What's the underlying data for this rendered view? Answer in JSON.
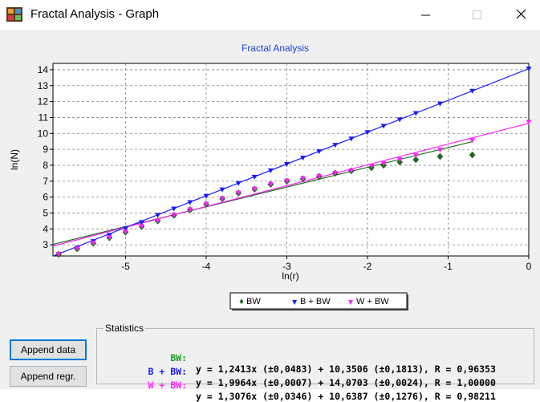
{
  "window": {
    "title": "Fractal Analysis - Graph",
    "min_icon": "minimize-icon",
    "max_icon": "maximize-icon",
    "close_icon": "close-icon"
  },
  "chart_data": {
    "type": "scatter",
    "title": "Fractal Analysis",
    "xlabel": "ln(r)",
    "ylabel": "ln(N)",
    "xlim": [
      -5.9,
      0
    ],
    "ylim": [
      2.3,
      14.4
    ],
    "x_ticks": [
      -5,
      -4,
      -3,
      -2,
      -1,
      0
    ],
    "y_ticks": [
      3,
      4,
      5,
      6,
      7,
      8,
      9,
      10,
      11,
      12,
      13,
      14
    ],
    "grid": true,
    "legend_position": "bottom",
    "series": [
      {
        "name": "BW",
        "color": "#1f6b1f",
        "marker": "diamond",
        "x": [
          -5.83,
          -5.6,
          -5.4,
          -5.2,
          -5.0,
          -4.8,
          -4.6,
          -4.4,
          -4.2,
          -4.0,
          -3.8,
          -3.6,
          -3.4,
          -3.2,
          -3.0,
          -2.8,
          -2.6,
          -2.4,
          -2.2,
          -1.95,
          -1.8,
          -1.6,
          -1.4,
          -1.1,
          -0.7
        ],
        "y": [
          2.4,
          2.75,
          3.1,
          3.45,
          3.8,
          4.15,
          4.5,
          4.85,
          5.2,
          5.55,
          5.9,
          6.25,
          6.5,
          6.8,
          7.0,
          7.15,
          7.3,
          7.5,
          7.65,
          7.85,
          8.0,
          8.2,
          8.35,
          8.55,
          8.65
        ],
        "regression": {
          "slope": 1.2413,
          "intercept": 10.3506,
          "x_range": [
            -5.9,
            -0.7
          ]
        }
      },
      {
        "name": "B + BW",
        "color": "#1a1aff",
        "marker": "triangle-down",
        "x": [
          -5.83,
          -5.6,
          -5.4,
          -5.2,
          -5.0,
          -4.8,
          -4.6,
          -4.4,
          -4.2,
          -4.0,
          -3.8,
          -3.6,
          -3.4,
          -3.2,
          -3.0,
          -2.8,
          -2.6,
          -2.4,
          -2.2,
          -2.0,
          -1.8,
          -1.6,
          -1.4,
          -1.1,
          -0.7,
          0.0
        ],
        "y": [
          2.4,
          2.8,
          3.2,
          3.6,
          4.0,
          4.4,
          4.85,
          5.25,
          5.65,
          6.05,
          6.45,
          6.85,
          7.25,
          7.65,
          8.05,
          8.45,
          8.85,
          9.25,
          9.65,
          10.05,
          10.45,
          10.85,
          11.25,
          11.85,
          12.65,
          14.05
        ],
        "regression": {
          "slope": 1.9964,
          "intercept": 14.0703,
          "x_range": [
            -5.9,
            0
          ]
        }
      },
      {
        "name": "W + BW",
        "color": "#ff22ff",
        "marker": "triangle-down",
        "x": [
          -5.83,
          -5.6,
          -5.4,
          -5.2,
          -5.0,
          -4.8,
          -4.6,
          -4.4,
          -4.2,
          -4.0,
          -3.8,
          -3.6,
          -3.4,
          -3.2,
          -3.0,
          -2.8,
          -2.6,
          -2.4,
          -2.2,
          -1.95,
          -1.8,
          -1.6,
          -1.4,
          -1.1,
          -0.7,
          0.0
        ],
        "y": [
          2.4,
          2.75,
          3.1,
          3.45,
          3.8,
          4.15,
          4.5,
          4.85,
          5.2,
          5.55,
          5.9,
          6.25,
          6.5,
          6.8,
          7.0,
          7.15,
          7.3,
          7.5,
          7.65,
          7.95,
          8.1,
          8.35,
          8.6,
          8.95,
          9.55,
          10.7
        ],
        "regression": {
          "slope": 1.3076,
          "intercept": 10.6387,
          "x_range": [
            -5.9,
            0
          ]
        }
      }
    ]
  },
  "legend": [
    {
      "symbol": "♦",
      "label": "BW",
      "color": "#1f6b1f"
    },
    {
      "symbol": "▼",
      "label": "B + BW",
      "color": "#1a1aff"
    },
    {
      "symbol": "▼",
      "label": "W + BW",
      "color": "#ff22ff"
    }
  ],
  "buttons": {
    "append_data": "Append data",
    "append_regr": "Append regr."
  },
  "statistics": {
    "label": "Statistics",
    "rows": [
      {
        "name": "BW:",
        "color": "#19a019",
        "equation": "y = 1,2413x (±0,0483) + 10,3506 (±0,1813), R = 0,96353"
      },
      {
        "name": "B + BW:",
        "color": "#1a1aff",
        "equation": "y = 1,9964x (±0,0007) + 14,0703 (±0,0024), R = 1,00000"
      },
      {
        "name": "W + BW:",
        "color": "#ff22ff",
        "equation": "y = 1,3076x (±0,0346) + 10,6387 (±0,1276), R = 0,98211"
      }
    ]
  }
}
